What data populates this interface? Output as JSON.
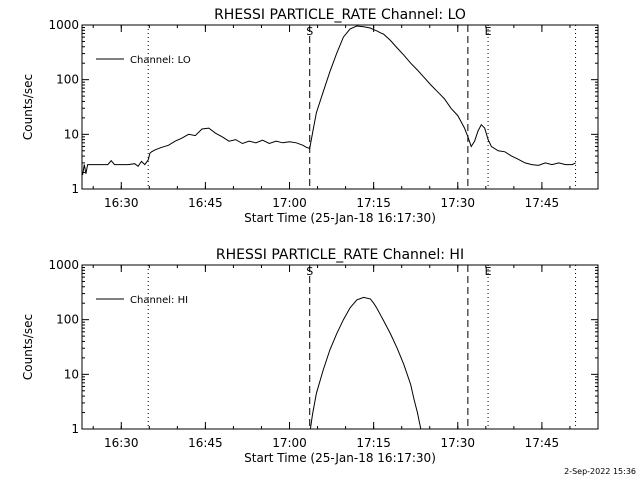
{
  "footer": {
    "timestamp": "2-Sep-2022 15:36"
  },
  "chart_data": [
    {
      "type": "line",
      "title": "RHESSI PARTICLE_RATE Channel: LO",
      "xlabel": "Start Time (25-Jan-18 16:17:30)",
      "ylabel": "Counts/sec",
      "yscale": "log",
      "xlim": [
        16.3833,
        17.9167
      ],
      "ylim": [
        1,
        1000
      ],
      "xticks": [
        {
          "v": 16.5,
          "label": "16:30"
        },
        {
          "v": 16.75,
          "label": "16:45"
        },
        {
          "v": 17.0,
          "label": "17:00"
        },
        {
          "v": 17.25,
          "label": "17:15"
        },
        {
          "v": 17.5,
          "label": "17:30"
        },
        {
          "v": 17.75,
          "label": "17:45"
        }
      ],
      "yticks": [
        {
          "v": 1,
          "label": "1"
        },
        {
          "v": 10,
          "label": "10"
        },
        {
          "v": 100,
          "label": "100"
        },
        {
          "v": 1000,
          "label": "1000"
        }
      ],
      "legend": {
        "entry": "Channel: LO",
        "position": "top-left"
      },
      "markers": [
        {
          "x": 17.06,
          "label": "S",
          "style": "dashed"
        },
        {
          "x": 17.53,
          "label": "",
          "style": "dashed"
        },
        {
          "x": 17.59,
          "label": "E",
          "style": "dotted"
        }
      ],
      "vlines_dotted": [
        16.58,
        17.85
      ],
      "grid": false,
      "series": [
        {
          "name": "Channel: LO",
          "x": [
            16.385,
            16.39,
            16.395,
            16.4,
            16.42,
            16.44,
            16.46,
            16.47,
            16.48,
            16.5,
            16.52,
            16.54,
            16.55,
            16.56,
            16.57,
            16.58,
            16.585,
            16.59,
            16.6,
            16.62,
            16.64,
            16.66,
            16.68,
            16.7,
            16.72,
            16.74,
            16.76,
            16.78,
            16.8,
            16.82,
            16.84,
            16.86,
            16.88,
            16.9,
            16.92,
            16.94,
            16.96,
            16.98,
            17.0,
            17.02,
            17.04,
            17.05,
            17.06,
            17.07,
            17.08,
            17.1,
            17.12,
            17.14,
            17.16,
            17.18,
            17.2,
            17.22,
            17.24,
            17.25,
            17.26,
            17.27,
            17.28,
            17.3,
            17.32,
            17.34,
            17.36,
            17.38,
            17.4,
            17.42,
            17.44,
            17.46,
            17.48,
            17.5,
            17.51,
            17.52,
            17.53,
            17.54,
            17.55,
            17.56,
            17.57,
            17.58,
            17.59,
            17.6,
            17.62,
            17.64,
            17.66,
            17.68,
            17.7,
            17.72,
            17.74,
            17.76,
            17.78,
            17.8,
            17.82,
            17.84,
            17.85
          ],
          "y": [
            1.8,
            2.8,
            1.9,
            2.8,
            2.8,
            2.8,
            2.8,
            3.3,
            2.8,
            2.8,
            2.8,
            2.9,
            2.6,
            3.2,
            2.8,
            3.4,
            4.5,
            4.8,
            5.2,
            5.8,
            6.3,
            7.5,
            8.5,
            10.0,
            9.5,
            12.5,
            13.0,
            10.5,
            9.0,
            7.5,
            8.0,
            6.8,
            7.5,
            7.0,
            7.8,
            6.8,
            7.5,
            7.0,
            7.3,
            7.0,
            6.3,
            5.8,
            5.5,
            12,
            25,
            60,
            140,
            300,
            600,
            850,
            960,
            930,
            880,
            820,
            780,
            720,
            680,
            520,
            380,
            280,
            200,
            150,
            110,
            80,
            60,
            45,
            30,
            22,
            17,
            13,
            9,
            6.0,
            7.5,
            11.5,
            15.0,
            13.0,
            8.0,
            6.0,
            5.0,
            4.8,
            4.0,
            3.5,
            3.0,
            2.8,
            2.7,
            3.0,
            2.8,
            3.0,
            2.8,
            2.8,
            3.0
          ]
        }
      ]
    },
    {
      "type": "line",
      "title": "RHESSI PARTICLE_RATE Channel: HI",
      "xlabel": "Start Time (25-Jan-18 16:17:30)",
      "ylabel": "Counts/sec",
      "yscale": "log",
      "xlim": [
        16.3833,
        17.9167
      ],
      "ylim": [
        1,
        1000
      ],
      "xticks": [
        {
          "v": 16.5,
          "label": "16:30"
        },
        {
          "v": 16.75,
          "label": "16:45"
        },
        {
          "v": 17.0,
          "label": "17:00"
        },
        {
          "v": 17.25,
          "label": "17:15"
        },
        {
          "v": 17.5,
          "label": "17:30"
        },
        {
          "v": 17.75,
          "label": "17:45"
        }
      ],
      "yticks": [
        {
          "v": 1,
          "label": "1"
        },
        {
          "v": 10,
          "label": "10"
        },
        {
          "v": 100,
          "label": "100"
        },
        {
          "v": 1000,
          "label": "1000"
        }
      ],
      "legend": {
        "entry": "Channel: HI",
        "position": "top-left"
      },
      "markers": [
        {
          "x": 17.06,
          "label": "S",
          "style": "dashed"
        },
        {
          "x": 17.53,
          "label": "",
          "style": "dashed"
        },
        {
          "x": 17.59,
          "label": "E",
          "style": "dotted"
        }
      ],
      "vlines_dotted": [
        16.58,
        17.85
      ],
      "grid": false,
      "series": [
        {
          "name": "Channel: HI",
          "x": [
            17.062,
            17.068,
            17.08,
            17.1,
            17.12,
            17.14,
            17.16,
            17.18,
            17.2,
            17.22,
            17.24,
            17.25,
            17.26,
            17.28,
            17.3,
            17.32,
            17.34,
            17.36,
            17.37,
            17.38,
            17.39
          ],
          "y": [
            1.0,
            1.8,
            4.5,
            12,
            28,
            55,
            100,
            165,
            230,
            255,
            240,
            200,
            160,
            95,
            55,
            30,
            15,
            6.5,
            3.5,
            2.0,
            1.0
          ]
        }
      ]
    }
  ]
}
